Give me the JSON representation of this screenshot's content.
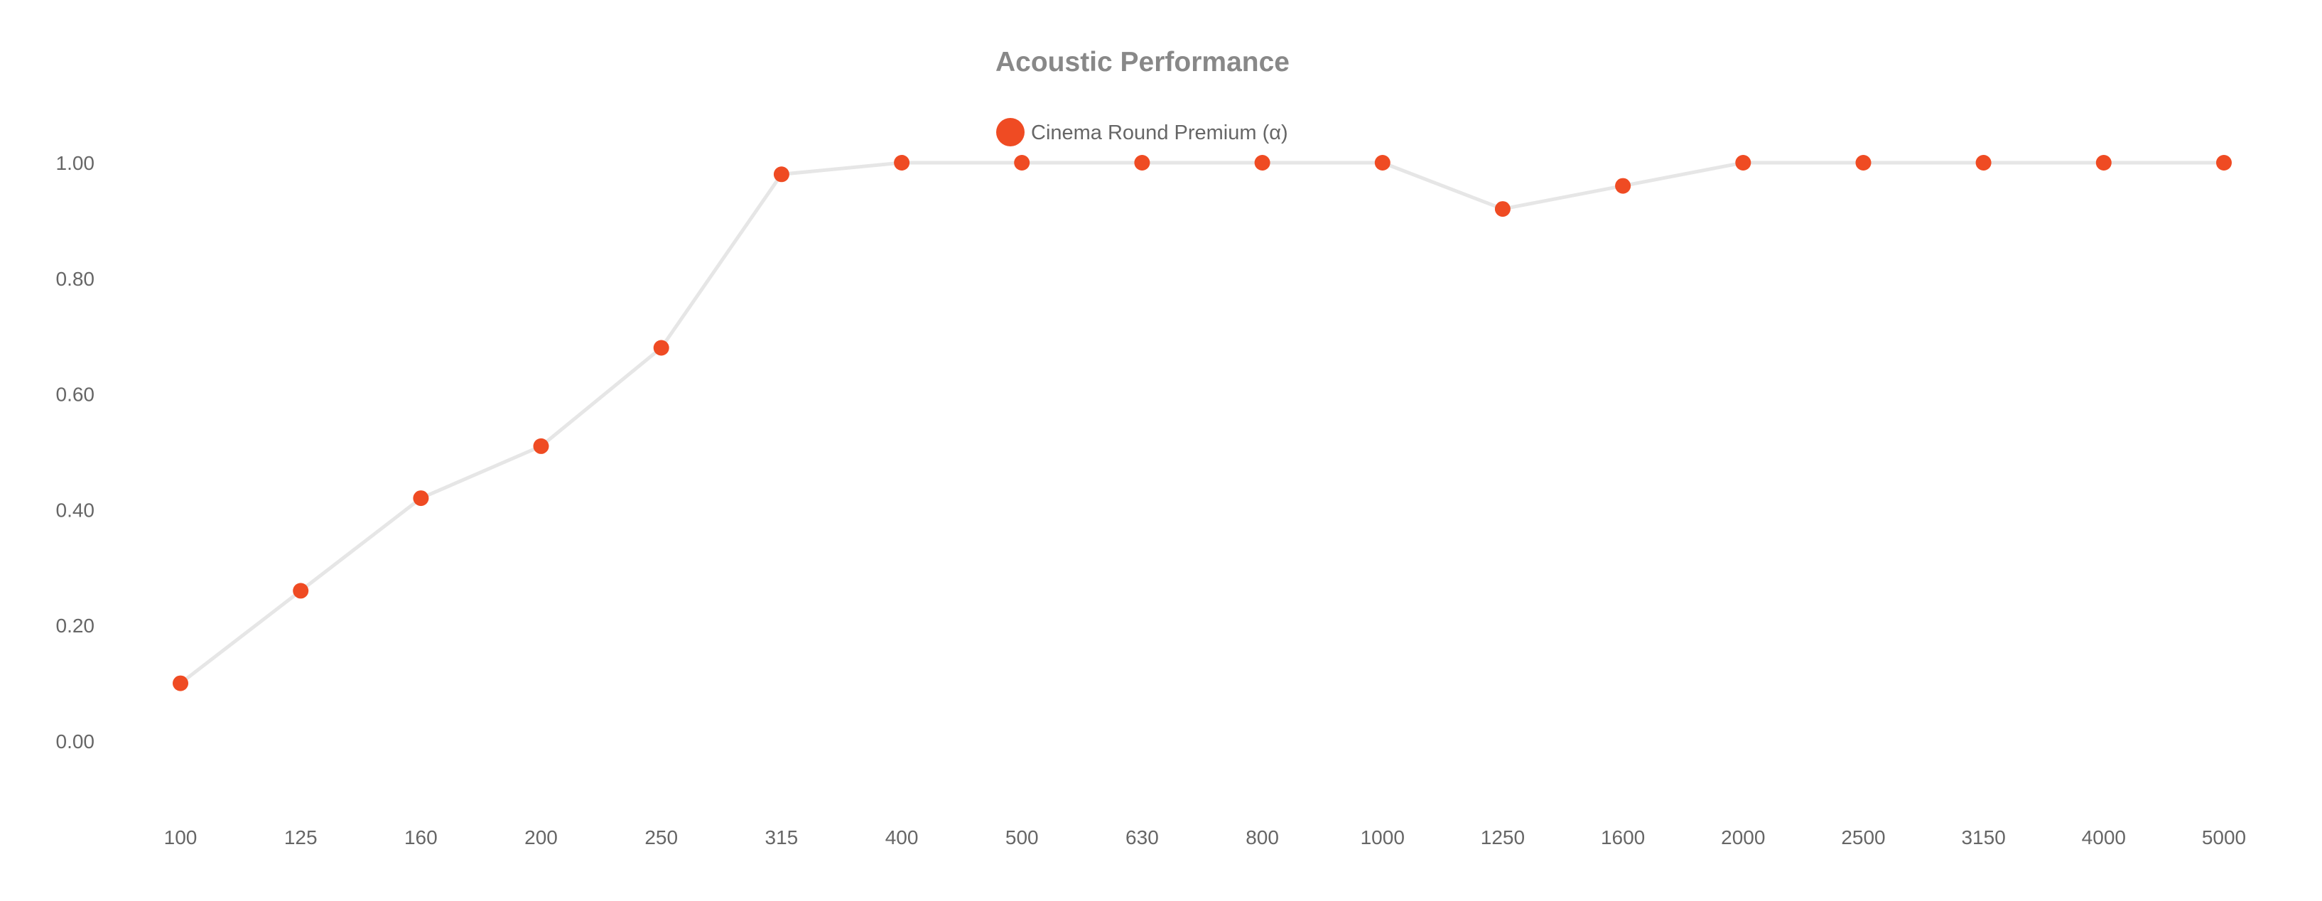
{
  "chart_data": {
    "type": "line",
    "title": "Acoustic Performance",
    "xlabel": "",
    "ylabel": "",
    "categories": [
      "100",
      "125",
      "160",
      "200",
      "250",
      "315",
      "400",
      "500",
      "630",
      "800",
      "1000",
      "1250",
      "1600",
      "2000",
      "2500",
      "3150",
      "4000",
      "5000"
    ],
    "series": [
      {
        "name": "Cinema Round Premium (α)",
        "values": [
          0.1,
          0.26,
          0.42,
          0.51,
          0.68,
          0.98,
          1.0,
          1.0,
          1.0,
          1.0,
          1.0,
          0.92,
          0.96,
          1.0,
          1.0,
          1.0,
          1.0,
          1.0
        ]
      }
    ],
    "y_ticks": [
      "0.00",
      "0.20",
      "0.40",
      "0.60",
      "0.80",
      "1.00"
    ],
    "ylim": [
      -0.11,
      1.11
    ],
    "grid": false,
    "legend_position": "top-center"
  },
  "colors": {
    "marker": "#ef4b23",
    "line": "#e6e6e6",
    "title": "#888888",
    "text": "#666666"
  }
}
